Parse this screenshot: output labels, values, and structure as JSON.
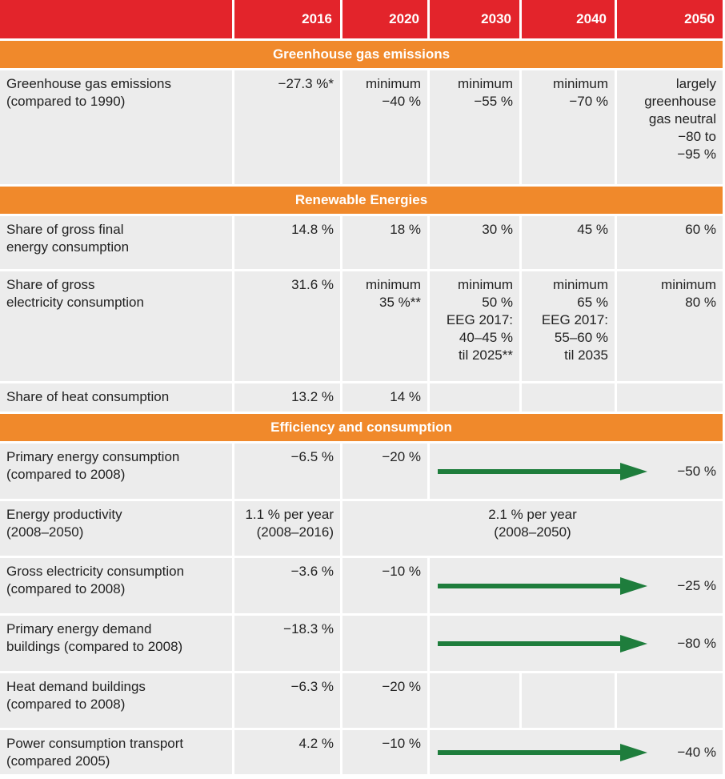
{
  "header": {
    "years": [
      "2016",
      "2020",
      "2030",
      "2040",
      "2050"
    ]
  },
  "sections": [
    {
      "title": "Greenhouse gas emissions",
      "rows": [
        {
          "label": "Greenhouse gas emissions\n(compared to 1990)",
          "cells": [
            "−27.3 %*",
            "minimum\n−40 %",
            "minimum\n−55 %",
            "minimum\n−70 %",
            "largely\ngreenhouse\ngas neutral\n−80 to\n−95 %"
          ]
        }
      ]
    },
    {
      "title": "Renewable Energies",
      "rows": [
        {
          "label": "Share of gross final\nenergy consumption",
          "cells": [
            "14.8 %",
            "18 %",
            "30 %",
            "45 %",
            "60 %"
          ]
        },
        {
          "label": "Share of gross\nelectricity consumption",
          "cells": [
            "31.6 %",
            "minimum\n35 %**",
            "minimum\n50 %\nEEG 2017:\n40–45 %\ntil 2025**",
            "minimum\n65 %\nEEG 2017:\n55–60 %\ntil 2035",
            "minimum\n80 %"
          ]
        },
        {
          "label": "Share of  heat consumption",
          "cells": [
            "13.2 %",
            "14 %",
            null,
            null,
            null
          ]
        }
      ]
    },
    {
      "title": "Efficiency and consumption",
      "rows": [
        {
          "label": "Primary energy consumption\n(compared to 2008)",
          "cells": [
            "−6.5 %",
            "−20 %"
          ],
          "arrow_value": "−50 %"
        },
        {
          "label": "Energy productivity\n(2008–2050)",
          "cells": [
            "1.1 % per year\n(2008–2016)"
          ],
          "span_value": "2.1 % per year\n(2008–2050)"
        },
        {
          "label": "Gross electricity consumption\n(compared to 2008)",
          "cells": [
            "−3.6 %",
            "−10 %"
          ],
          "arrow_value": "−25 %"
        },
        {
          "label": "Primary energy demand\nbuildings (compared to 2008)",
          "cells": [
            "−18.3 %",
            null
          ],
          "arrow_value": "−80 %"
        },
        {
          "label": "Heat demand buildings\n(compared to 2008)",
          "cells": [
            "−6.3 %",
            "−20 %",
            null,
            null,
            null
          ]
        },
        {
          "label": "Power consumption transport\n(compared 2005)",
          "cells": [
            "4.2 %",
            "−10 %"
          ],
          "arrow_value": "−40 %"
        }
      ]
    }
  ]
}
